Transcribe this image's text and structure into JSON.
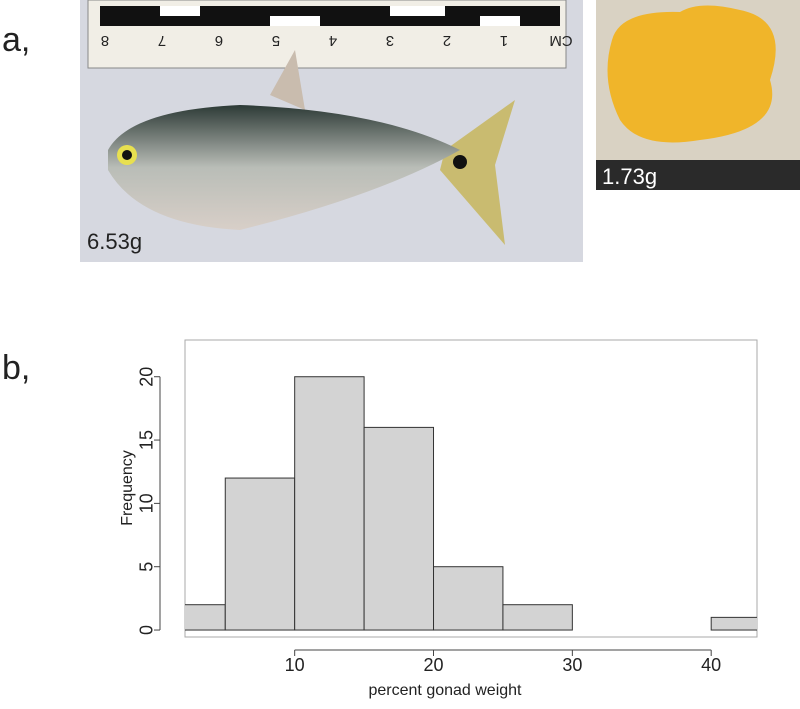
{
  "panel_a": {
    "label": "a,",
    "fish_weight": "6.53g",
    "gonad_weight": "1.73g",
    "ruler_labels": [
      "8",
      "7",
      "6",
      "5",
      "4",
      "3",
      "2",
      "1",
      "CM"
    ]
  },
  "chart_data": {
    "type": "histogram",
    "panel_label": "b,",
    "bins": [
      0,
      5,
      10,
      15,
      20,
      25,
      30,
      35,
      40,
      45
    ],
    "values": [
      2,
      12,
      20,
      16,
      5,
      2,
      0,
      0,
      1
    ],
    "color": "#d3d3d3",
    "xlabel": "percent gonad weight",
    "ylabel": "Frequency",
    "xlim": [
      2.1,
      43.3
    ],
    "ylim": [
      -0.55,
      22.9
    ],
    "xticks": [
      10,
      20,
      30,
      40
    ],
    "yticks": [
      0,
      5,
      10,
      15,
      20
    ]
  }
}
